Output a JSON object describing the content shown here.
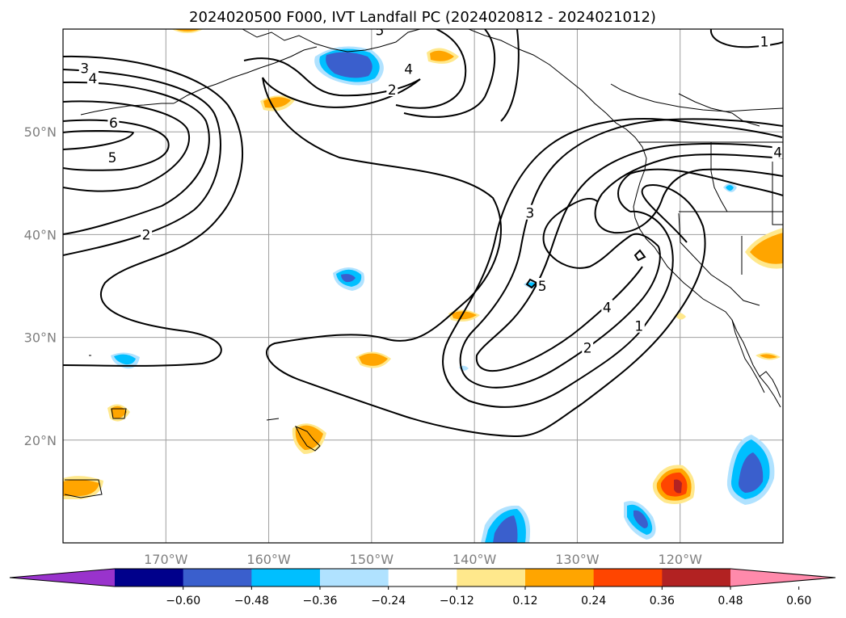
{
  "chart_data": {
    "type": "contour-map",
    "title": "2024020500 F000, IVT Landfall PC (2024020812 - 2024021012)",
    "projection": "PlateCarree",
    "xlim_lon": [
      -180,
      -110
    ],
    "ylim_lat": [
      10,
      60
    ],
    "gridlines": true,
    "x_ticks": [
      {
        "lon": -170,
        "label": "170°W"
      },
      {
        "lon": -160,
        "label": "160°W"
      },
      {
        "lon": -150,
        "label": "150°W"
      },
      {
        "lon": -140,
        "label": "140°W"
      },
      {
        "lon": -130,
        "label": "130°W"
      },
      {
        "lon": -120,
        "label": "120°W"
      }
    ],
    "y_ticks": [
      {
        "lat": 20,
        "label": "20°N"
      },
      {
        "lat": 30,
        "label": "30°N"
      },
      {
        "lat": 40,
        "label": "40°N"
      },
      {
        "lat": 50,
        "label": "50°N"
      }
    ],
    "contour_labels": [
      {
        "text": "3",
        "lon": -177.9,
        "lat": 56.2
      },
      {
        "text": "4",
        "lon": -177.1,
        "lat": 55.2
      },
      {
        "text": "6",
        "lon": -175.1,
        "lat": 50.9
      },
      {
        "text": "5",
        "lon": -175.2,
        "lat": 47.5
      },
      {
        "text": "2",
        "lon": -171.9,
        "lat": 40.0
      },
      {
        "text": "5",
        "lon": -149.2,
        "lat": 59.9
      },
      {
        "text": "4",
        "lon": -146.4,
        "lat": 56.1
      },
      {
        "text": "2",
        "lon": -148.0,
        "lat": 54.1
      },
      {
        "text": "3",
        "lon": -134.6,
        "lat": 42.1
      },
      {
        "text": "5",
        "lon": -133.4,
        "lat": 35.0
      },
      {
        "text": "4",
        "lon": -127.1,
        "lat": 32.9
      },
      {
        "text": "2",
        "lon": -129.0,
        "lat": 29.0
      },
      {
        "text": "1",
        "lon": -124.0,
        "lat": 31.1
      },
      {
        "text": "1",
        "lon": -111.8,
        "lat": 58.8
      },
      {
        "text": "4",
        "lon": -110.5,
        "lat": 48.0
      }
    ],
    "colorbar": {
      "boundaries": [
        -0.72,
        -0.6,
        -0.48,
        -0.36,
        -0.24,
        -0.12,
        0.12,
        0.24,
        0.36,
        0.48,
        0.6,
        0.72
      ],
      "tick_labels": [
        "−0.60",
        "−0.48",
        "−0.36",
        "−0.24",
        "−0.12",
        "0.12",
        "0.24",
        "0.36",
        "0.48",
        "0.60"
      ],
      "colors": [
        "#9933cc",
        "#00008b",
        "#3a5fcd",
        "#00bfff",
        "#b0e2ff",
        "#ffffff",
        "#ffe88c",
        "#ffa500",
        "#ff4500",
        "#b22222",
        "#ff8aab"
      ],
      "extend": "both"
    }
  }
}
